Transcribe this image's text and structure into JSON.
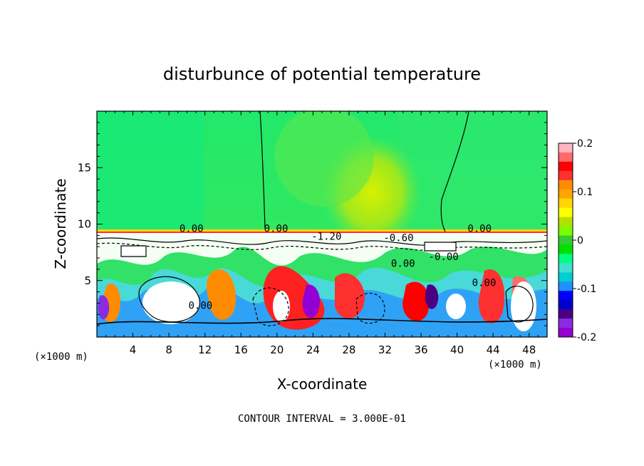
{
  "chart_data": {
    "type": "heatmap",
    "title": "disturbunce of potential temperature",
    "xlabel": "X-coordinate",
    "ylabel": "Z-coordinate",
    "x_unit": "(×1000 m)",
    "x_unit_right": "(×1000 m)",
    "xlim": [
      0,
      50
    ],
    "ylim": [
      0,
      20
    ],
    "x_ticks": [
      4,
      8,
      12,
      16,
      20,
      24,
      28,
      32,
      36,
      40,
      44,
      48
    ],
    "y_ticks": [
      5,
      10,
      15
    ],
    "footer": "CONTOUR INTERVAL = 3.000E-01",
    "colorbar": {
      "range": [
        -0.2,
        0.2
      ],
      "ticks": [
        "0.2",
        "0.1",
        "0",
        "-0.1",
        "-0.2"
      ],
      "colors": [
        "#ffb6c1",
        "#ff6a6a",
        "#ff0000",
        "#ff3030",
        "#ff8c00",
        "#ffa500",
        "#ffd700",
        "#ffff00",
        "#b4e000",
        "#7cfc00",
        "#32cd32",
        "#00e000",
        "#00ff7f",
        "#40e0d0",
        "#00ced1",
        "#1e90ff",
        "#0000ff",
        "#0000cd",
        "#4b0082",
        "#8a2be2",
        "#9400d3"
      ]
    },
    "contour_labels": [
      {
        "text": "0.00",
        "x": 10.5,
        "z": 9.3
      },
      {
        "text": "0.00",
        "x": 19.9,
        "z": 9.3
      },
      {
        "text": "-1.20",
        "x": 25.5,
        "z": 8.6
      },
      {
        "text": "-0.60",
        "x": 33.5,
        "z": 8.5
      },
      {
        "text": "0.00",
        "x": 42.5,
        "z": 9.3
      },
      {
        "text": "0.00",
        "x": 34.0,
        "z": 6.2
      },
      {
        "text": "0.00",
        "x": 11.5,
        "z": 2.5
      },
      {
        "text": "0.00",
        "x": 43.0,
        "z": 4.5
      },
      {
        "text": "-0.00",
        "x": 38.5,
        "z": 6.8
      }
    ]
  }
}
